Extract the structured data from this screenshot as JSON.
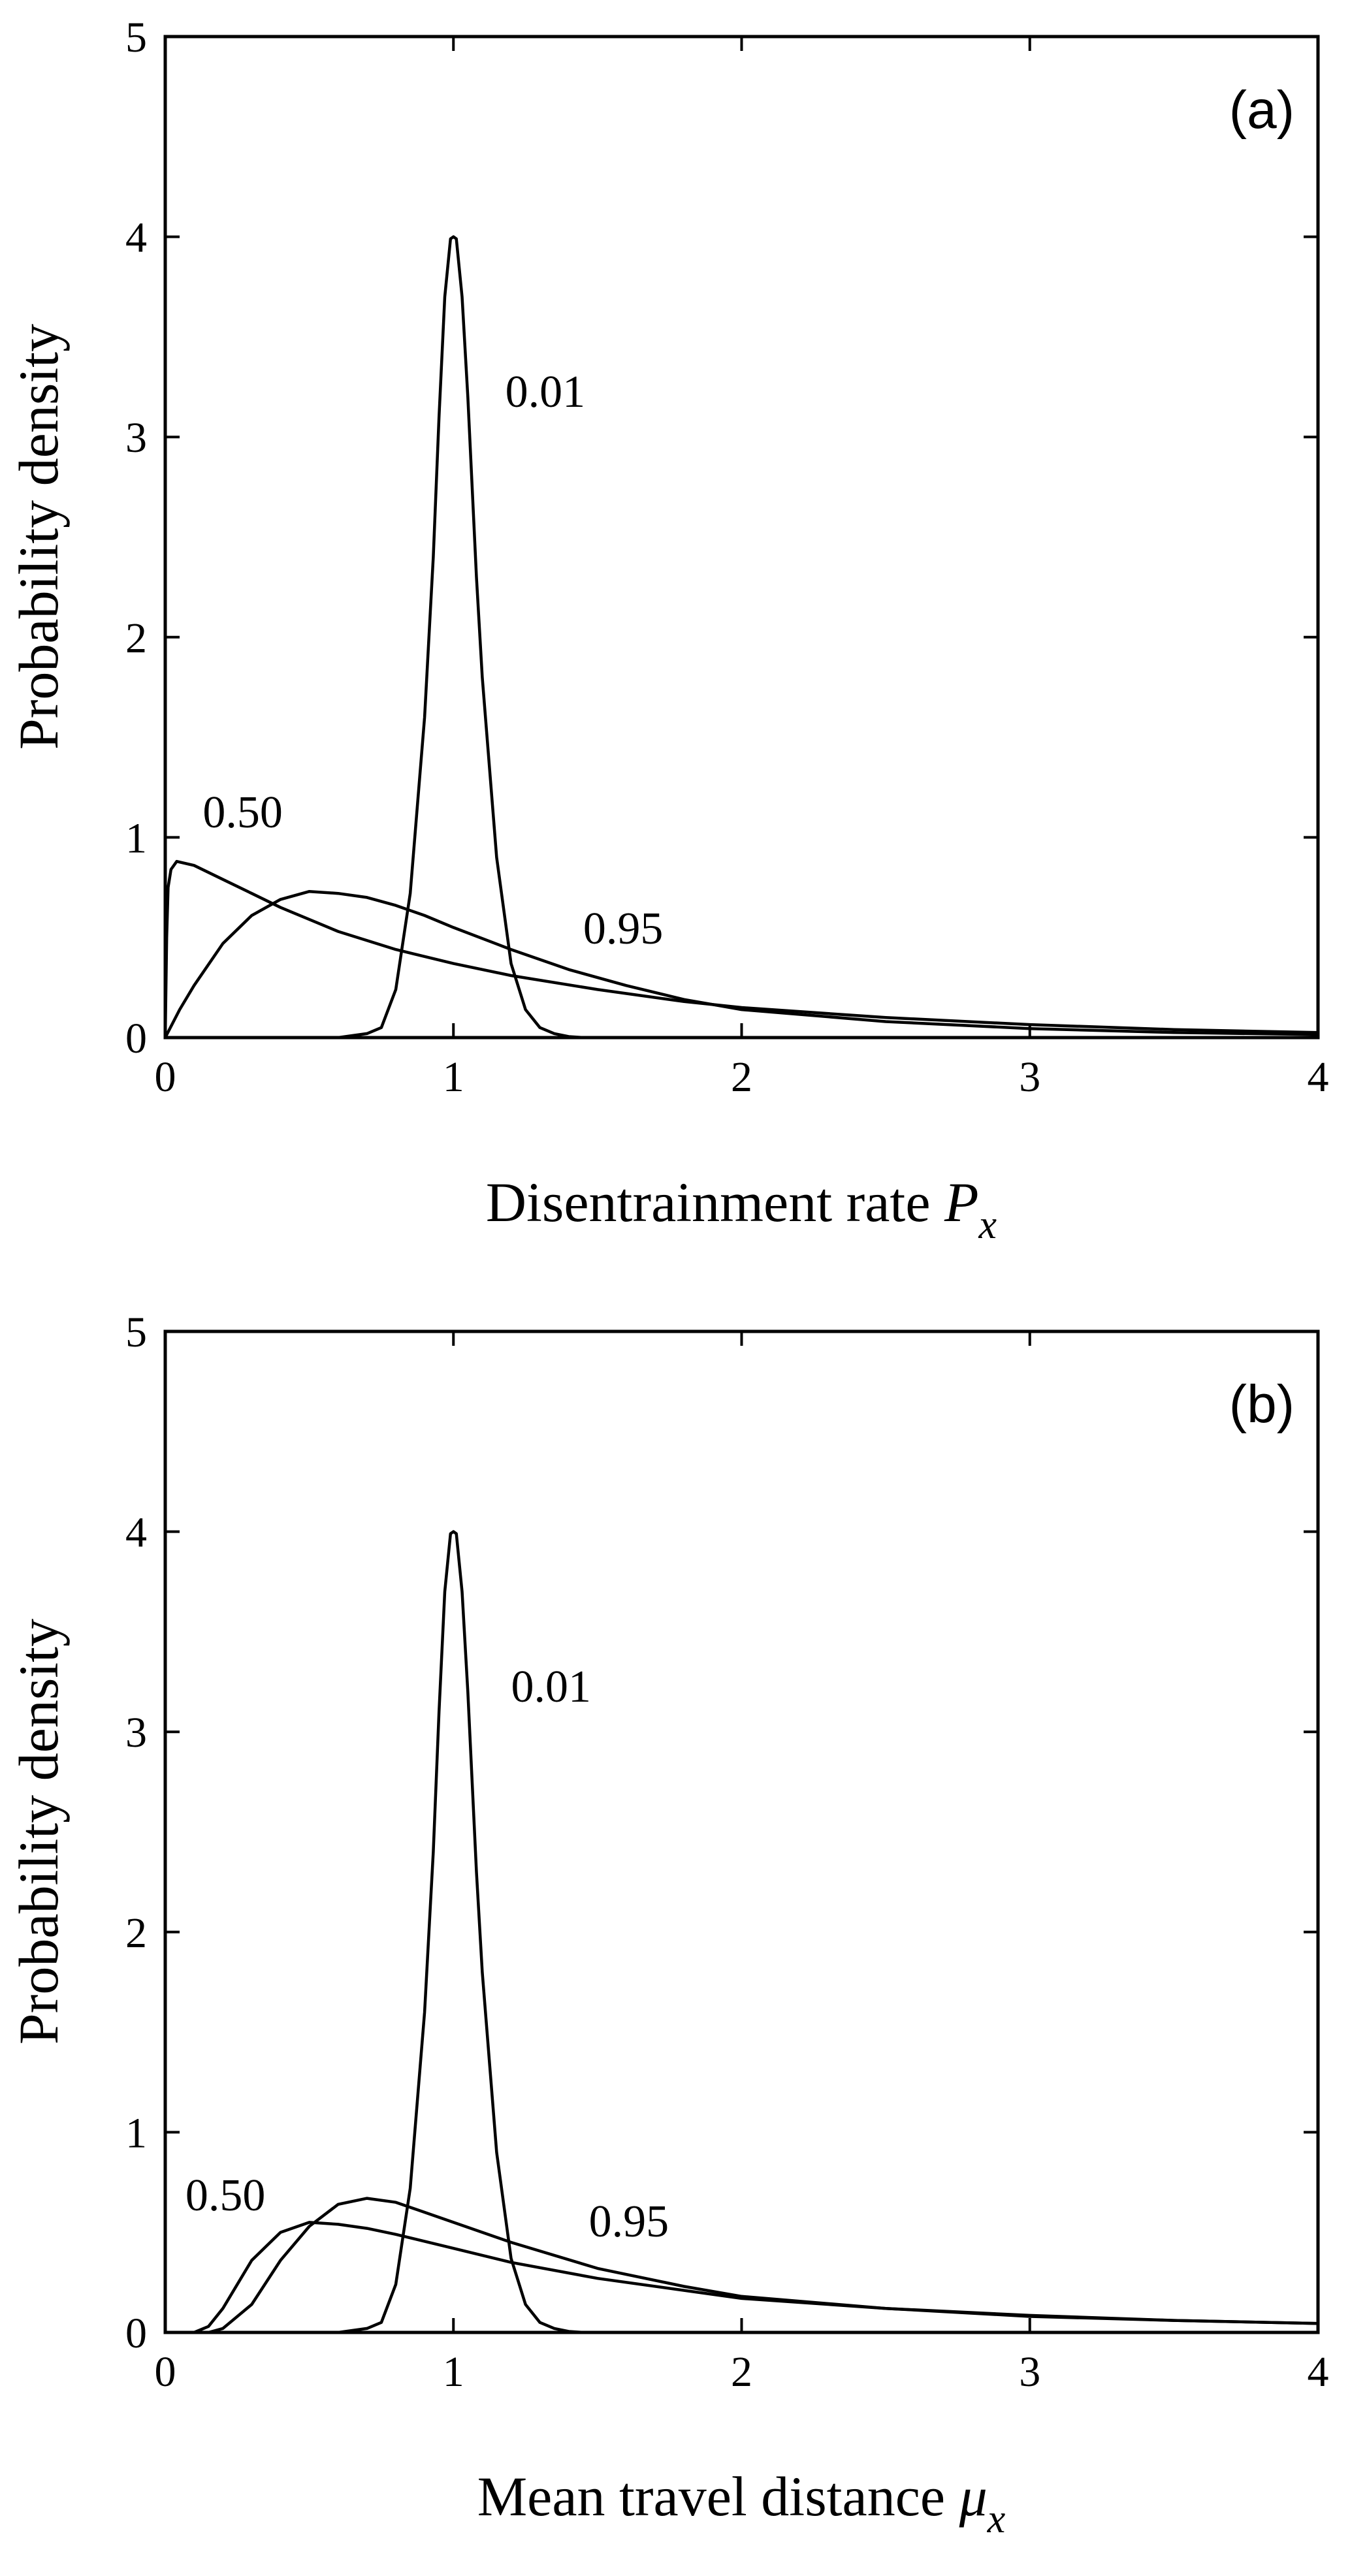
{
  "chart_data": [
    {
      "type": "line",
      "panel_tag": "(a)",
      "xlabel": "Disentrainment rate",
      "xlabel_symbol": "P",
      "xlabel_subscript": "x",
      "ylabel": "Probability density",
      "xlim": [
        0,
        4
      ],
      "ylim": [
        0,
        5
      ],
      "xticks": [
        "0",
        "1",
        "2",
        "3",
        "4"
      ],
      "yticks": [
        "0",
        "1",
        "2",
        "3",
        "4",
        "5"
      ],
      "grid": false,
      "series": [
        {
          "name": "0.01",
          "label_pos": [
            1.18,
            3.15
          ],
          "points": [
            [
              0,
              0
            ],
            [
              0.6,
              0
            ],
            [
              0.7,
              0.02
            ],
            [
              0.75,
              0.05
            ],
            [
              0.8,
              0.24
            ],
            [
              0.85,
              0.72
            ],
            [
              0.9,
              1.6
            ],
            [
              0.93,
              2.4
            ],
            [
              0.95,
              3.1
            ],
            [
              0.97,
              3.7
            ],
            [
              0.99,
              3.99
            ],
            [
              1.0,
              4.0
            ],
            [
              1.01,
              3.99
            ],
            [
              1.03,
              3.7
            ],
            [
              1.05,
              3.2
            ],
            [
              1.08,
              2.3
            ],
            [
              1.1,
              1.8
            ],
            [
              1.15,
              0.9
            ],
            [
              1.2,
              0.37
            ],
            [
              1.25,
              0.14
            ],
            [
              1.3,
              0.05
            ],
            [
              1.35,
              0.02
            ],
            [
              1.4,
              0.005
            ],
            [
              1.45,
              0
            ],
            [
              4,
              0
            ]
          ]
        },
        {
          "name": "0.50",
          "label_pos": [
            0.13,
            1.05
          ],
          "points": [
            [
              0,
              0
            ],
            [
              0.005,
              0.5
            ],
            [
              0.01,
              0.75
            ],
            [
              0.02,
              0.84
            ],
            [
              0.04,
              0.88
            ],
            [
              0.1,
              0.86
            ],
            [
              0.2,
              0.79
            ],
            [
              0.3,
              0.72
            ],
            [
              0.4,
              0.65
            ],
            [
              0.5,
              0.59
            ],
            [
              0.6,
              0.53
            ],
            [
              0.8,
              0.44
            ],
            [
              1.0,
              0.37
            ],
            [
              1.2,
              0.31
            ],
            [
              1.5,
              0.24
            ],
            [
              1.8,
              0.18
            ],
            [
              2.0,
              0.15
            ],
            [
              2.5,
              0.1
            ],
            [
              3.0,
              0.065
            ],
            [
              3.5,
              0.04
            ],
            [
              4.0,
              0.025
            ]
          ]
        },
        {
          "name": "0.95",
          "label_pos": [
            1.45,
            0.47
          ],
          "points": [
            [
              0,
              0
            ],
            [
              0.05,
              0.14
            ],
            [
              0.1,
              0.26
            ],
            [
              0.2,
              0.47
            ],
            [
              0.3,
              0.61
            ],
            [
              0.4,
              0.69
            ],
            [
              0.5,
              0.73
            ],
            [
              0.6,
              0.72
            ],
            [
              0.7,
              0.7
            ],
            [
              0.8,
              0.66
            ],
            [
              0.9,
              0.61
            ],
            [
              1.0,
              0.55
            ],
            [
              1.2,
              0.44
            ],
            [
              1.4,
              0.34
            ],
            [
              1.6,
              0.26
            ],
            [
              1.8,
              0.19
            ],
            [
              2.0,
              0.14
            ],
            [
              2.5,
              0.08
            ],
            [
              3.0,
              0.045
            ],
            [
              3.5,
              0.025
            ],
            [
              4.0,
              0.015
            ]
          ]
        }
      ]
    },
    {
      "type": "line",
      "panel_tag": "(b)",
      "xlabel": "Mean travel distance",
      "xlabel_symbol": "μ",
      "xlabel_subscript": "x",
      "ylabel": "Probability density",
      "xlim": [
        0,
        4
      ],
      "ylim": [
        0,
        5
      ],
      "xticks": [
        "0",
        "1",
        "2",
        "3",
        "4"
      ],
      "yticks": [
        "0",
        "1",
        "2",
        "3",
        "4",
        "5"
      ],
      "grid": false,
      "series": [
        {
          "name": "0.01",
          "label_pos": [
            1.2,
            3.15
          ],
          "points": [
            [
              0,
              0
            ],
            [
              0.6,
              0
            ],
            [
              0.7,
              0.02
            ],
            [
              0.75,
              0.05
            ],
            [
              0.8,
              0.24
            ],
            [
              0.85,
              0.72
            ],
            [
              0.9,
              1.6
            ],
            [
              0.93,
              2.4
            ],
            [
              0.95,
              3.1
            ],
            [
              0.97,
              3.7
            ],
            [
              0.99,
              3.99
            ],
            [
              1.0,
              4.0
            ],
            [
              1.01,
              3.99
            ],
            [
              1.03,
              3.7
            ],
            [
              1.05,
              3.2
            ],
            [
              1.08,
              2.3
            ],
            [
              1.1,
              1.8
            ],
            [
              1.15,
              0.9
            ],
            [
              1.2,
              0.37
            ],
            [
              1.25,
              0.14
            ],
            [
              1.3,
              0.05
            ],
            [
              1.35,
              0.02
            ],
            [
              1.4,
              0.005
            ],
            [
              1.45,
              0
            ],
            [
              4,
              0
            ]
          ]
        },
        {
          "name": "0.50",
          "label_pos": [
            0.07,
            0.61
          ],
          "points": [
            [
              0,
              0
            ],
            [
              0.1,
              0
            ],
            [
              0.15,
              0.03
            ],
            [
              0.2,
              0.12
            ],
            [
              0.3,
              0.36
            ],
            [
              0.4,
              0.5
            ],
            [
              0.5,
              0.55
            ],
            [
              0.6,
              0.54
            ],
            [
              0.7,
              0.52
            ],
            [
              0.8,
              0.49
            ],
            [
              1.0,
              0.42
            ],
            [
              1.2,
              0.35
            ],
            [
              1.5,
              0.27
            ],
            [
              2.0,
              0.17
            ],
            [
              2.5,
              0.12
            ],
            [
              3.0,
              0.085
            ],
            [
              3.5,
              0.06
            ],
            [
              4.0,
              0.045
            ]
          ]
        },
        {
          "name": "0.95",
          "label_pos": [
            1.47,
            0.48
          ],
          "points": [
            [
              0,
              0
            ],
            [
              0.15,
              0
            ],
            [
              0.2,
              0.02
            ],
            [
              0.3,
              0.14
            ],
            [
              0.4,
              0.36
            ],
            [
              0.5,
              0.53
            ],
            [
              0.6,
              0.64
            ],
            [
              0.7,
              0.67
            ],
            [
              0.8,
              0.65
            ],
            [
              0.9,
              0.6
            ],
            [
              1.0,
              0.55
            ],
            [
              1.2,
              0.45
            ],
            [
              1.5,
              0.32
            ],
            [
              1.8,
              0.23
            ],
            [
              2.0,
              0.18
            ],
            [
              2.5,
              0.12
            ],
            [
              3.0,
              0.08
            ],
            [
              3.5,
              0.06
            ],
            [
              4.0,
              0.045
            ]
          ]
        }
      ]
    }
  ]
}
